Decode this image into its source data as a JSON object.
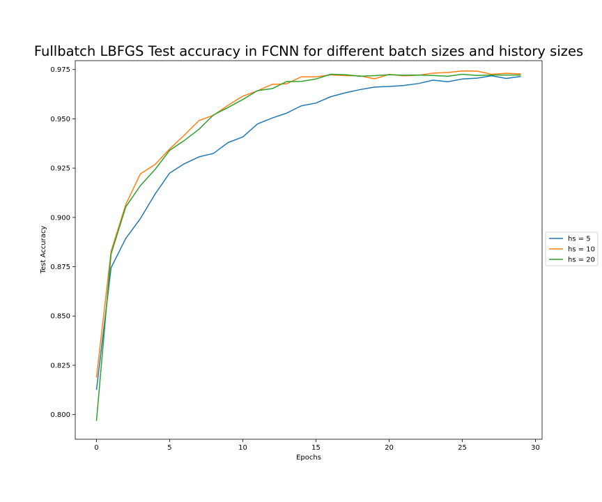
{
  "chart_data": {
    "type": "line",
    "title": "Fullbatch LBFGS Test accuracy in FCNN for different batch sizes and history sizes",
    "xlabel": "Epochs",
    "ylabel": "Test Accuracy",
    "xlim": [
      -1.45,
      30.45
    ],
    "ylim": [
      0.7875,
      0.9795
    ],
    "xticks": [
      0,
      5,
      10,
      15,
      20,
      25,
      30
    ],
    "xtick_labels": [
      "0",
      "5",
      "10",
      "15",
      "20",
      "25",
      "30"
    ],
    "yticks": [
      0.8,
      0.825,
      0.85,
      0.875,
      0.9,
      0.925,
      0.95,
      0.975
    ],
    "ytick_labels": [
      "0.800",
      "0.825",
      "0.850",
      "0.875",
      "0.900",
      "0.925",
      "0.950",
      "0.975"
    ],
    "grid": false,
    "legend_position": "center-right-outside",
    "x": [
      0,
      1,
      2,
      3,
      4,
      5,
      6,
      7,
      8,
      9,
      10,
      11,
      12,
      13,
      14,
      15,
      16,
      17,
      18,
      19,
      20,
      21,
      22,
      23,
      24,
      25,
      26,
      27,
      28,
      29
    ],
    "series": [
      {
        "name": "hs = 5",
        "color": "#1f77b4",
        "values": [
          0.8125,
          0.8745,
          0.8893,
          0.8994,
          0.9118,
          0.9225,
          0.9272,
          0.9307,
          0.9325,
          0.938,
          0.9408,
          0.9474,
          0.9504,
          0.9529,
          0.9566,
          0.958,
          0.9612,
          0.9632,
          0.9648,
          0.9661,
          0.9664,
          0.9669,
          0.9679,
          0.9696,
          0.9688,
          0.9702,
          0.9706,
          0.9718,
          0.9705,
          0.9715
        ]
      },
      {
        "name": "hs = 10",
        "color": "#ff7f0e",
        "values": [
          0.8188,
          0.8829,
          0.9065,
          0.9221,
          0.9268,
          0.9347,
          0.9417,
          0.9491,
          0.9518,
          0.9569,
          0.9615,
          0.9642,
          0.9675,
          0.9678,
          0.9713,
          0.9713,
          0.9723,
          0.9719,
          0.9718,
          0.9703,
          0.9725,
          0.9718,
          0.9721,
          0.9732,
          0.9735,
          0.9743,
          0.9742,
          0.9726,
          0.9731,
          0.9728
        ]
      },
      {
        "name": "hs = 20",
        "color": "#2ca02c",
        "values": [
          0.7968,
          0.8815,
          0.9053,
          0.9161,
          0.9243,
          0.934,
          0.939,
          0.9447,
          0.952,
          0.9558,
          0.9598,
          0.9643,
          0.9653,
          0.9689,
          0.969,
          0.9702,
          0.9726,
          0.9724,
          0.9716,
          0.9719,
          0.9724,
          0.9721,
          0.9722,
          0.972,
          0.9716,
          0.9726,
          0.972,
          0.9722,
          0.9722,
          0.9722
        ]
      }
    ]
  }
}
